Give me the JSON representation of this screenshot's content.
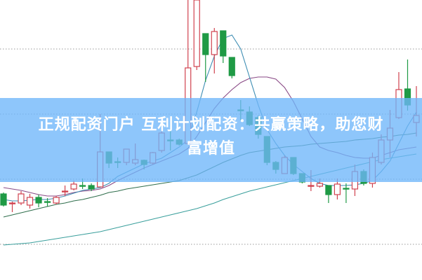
{
  "banner": {
    "line1": "正规配资门户 互利计划配资：共赢策略，助您财",
    "line2": "富增值"
  },
  "chart_data": {
    "type": "candlestick",
    "title": "",
    "xlabel": "",
    "ylabel": "",
    "ylim": [
      0,
      100
    ],
    "grid": true,
    "gridlines": [
      82.5,
      59.25,
      36,
      12.75
    ],
    "colors": {
      "up": "#d0424f",
      "down": "#1f9a45",
      "ma5": "#3d8db3",
      "ma10": "#8a4a86",
      "ma20": "#2f6e4c",
      "ma60": "#3a9f9c",
      "banner": "#6eb6fa"
    },
    "candles": [
      [
        30.75,
        26.75,
        31.25,
        26.25
      ],
      [
        27.5,
        27.5,
        28,
        24.25
      ],
      [
        27.5,
        30.75,
        31.75,
        26.75
      ],
      [
        26.75,
        29.5,
        30.75,
        25.5
      ],
      [
        29.5,
        27.5,
        30.5,
        26
      ],
      [
        28,
        27.75,
        29.25,
        26.25
      ],
      [
        27.5,
        29.5,
        30,
        27
      ],
      [
        31.6,
        31.75,
        33.75,
        30
      ],
      [
        32.5,
        34.25,
        35.5,
        32
      ],
      [
        33.75,
        33.5,
        36.25,
        32.5
      ],
      [
        33.75,
        32.5,
        34.5,
        31.75
      ],
      [
        33.25,
        45.75,
        59.25,
        33.25
      ],
      [
        45.75,
        41.75,
        45.75,
        40
      ],
      [
        42.25,
        42,
        43.75,
        40
      ],
      [
        42,
        46.75,
        46.75,
        41
      ],
      [
        41.75,
        43,
        48.75,
        41
      ],
      [
        42.75,
        41.25,
        43,
        39.5
      ],
      [
        41.75,
        45.5,
        45.75,
        41.25
      ],
      [
        46.25,
        52.5,
        53.75,
        45.5
      ],
      [
        50,
        49.75,
        53.75,
        46.25
      ],
      [
        50,
        48.5,
        50.5,
        48
      ],
      [
        48.75,
        75.75,
        100,
        48.25
      ],
      [
        76.25,
        100,
        100,
        75
      ],
      [
        88,
        80.5,
        88,
        70.75
      ],
      [
        80.5,
        88.75,
        90,
        73.75
      ],
      [
        89,
        80,
        89,
        77.5
      ],
      [
        79.5,
        73,
        79.5,
        72
      ],
      [
        60.75,
        60.5,
        64.25,
        57
      ],
      [
        60,
        55.5,
        62,
        55
      ],
      [
        58,
        52,
        58.75,
        50.5
      ],
      [
        51.25,
        42,
        51.25,
        41
      ],
      [
        42,
        39.5,
        42.5,
        38
      ],
      [
        38,
        43.75,
        44.5,
        38
      ],
      [
        43.75,
        38,
        43.75,
        37.5
      ],
      [
        38,
        35,
        38,
        34.5
      ],
      [
        33.75,
        33.75,
        39.25,
        31.75
      ],
      [
        33.5,
        34.5,
        36.25,
        33
      ],
      [
        33.75,
        30.5,
        33.75,
        27.5
      ],
      [
        30.5,
        34.25,
        36.25,
        28.75
      ],
      [
        32.75,
        32.5,
        34.5,
        27.5
      ],
      [
        32.5,
        38.75,
        41.25,
        30
      ],
      [
        38.75,
        34.5,
        39.5,
        33.75
      ],
      [
        34.5,
        43.75,
        45.5,
        33
      ],
      [
        42,
        50,
        52,
        41.25
      ],
      [
        50,
        54.25,
        60.75,
        43.75
      ],
      [
        58,
        68,
        74.25,
        57.5
      ],
      [
        68.25,
        62.5,
        78.75,
        60.5
      ],
      [
        56.25,
        58.75,
        69.25,
        51.25
      ]
    ],
    "candle_fields": [
      "open",
      "close",
      "high",
      "low"
    ],
    "moving_averages": {
      "ma5": [
        28.75,
        28.25,
        28.25,
        28.5,
        28.75,
        28.75,
        29.25,
        30,
        31,
        32,
        32.5,
        33,
        34.5,
        37,
        38.5,
        40,
        41.5,
        42.5,
        43.5,
        45.5,
        47.5,
        50,
        60,
        71.25,
        80,
        86.25,
        87.5,
        82.5,
        72.5,
        62.5,
        53.75,
        48.75,
        44.5,
        41.25,
        38.75,
        36.25,
        34.5,
        33.75,
        33.75,
        33.75,
        34,
        34.5,
        35.5,
        38.75,
        42.5,
        48.75,
        55,
        60
      ],
      "ma10": [
        33,
        32.5,
        32,
        31.25,
        30.5,
        30,
        30,
        30.5,
        31.25,
        31.75,
        32,
        32.5,
        33.75,
        35.5,
        37,
        38.5,
        40,
        41.25,
        42.5,
        43.75,
        45,
        47,
        51.25,
        56.25,
        61.25,
        65,
        68,
        70.5,
        72,
        72.5,
        72.5,
        71.75,
        68.75,
        63.75,
        57.5,
        51.25,
        47.5,
        46.25,
        45.5,
        44.5,
        43.75,
        43.5,
        43.5,
        44.5,
        45.5,
        46.5,
        47,
        47.5
      ],
      "ma20": [
        22.5,
        23.25,
        24,
        24.75,
        25.5,
        26.25,
        27,
        27.5,
        28.25,
        28.75,
        29.5,
        30.25,
        31.25,
        31.75,
        32.5,
        33,
        33.5,
        34,
        34.5,
        35,
        35.5,
        36.5,
        37.5,
        39,
        40.5,
        42,
        43.25,
        44.5,
        45.5,
        46,
        46.5,
        47,
        47.5,
        47.75,
        48,
        48.5,
        48.75,
        49,
        49.25,
        49.5,
        50,
        50.25,
        50.5,
        51,
        51.25,
        51.75,
        52,
        52.5
      ],
      "ma60": [
        12.5,
        12.75,
        13,
        13.25,
        13.75,
        14.25,
        14.75,
        15.25,
        15.75,
        16.25,
        16.75,
        17.25,
        18,
        18.75,
        19.5,
        20.25,
        21,
        21.75,
        22.5,
        23.25,
        24,
        24.75,
        25.5,
        26.5,
        27.5,
        28.75,
        29.75,
        30.75,
        31.75,
        32.5,
        33.25,
        34,
        34.75,
        35.5,
        36.25,
        37,
        37.75,
        38.5,
        39.25,
        40,
        40.75,
        41.5,
        42.25,
        43,
        43.5,
        44,
        44.5,
        45
      ]
    }
  }
}
